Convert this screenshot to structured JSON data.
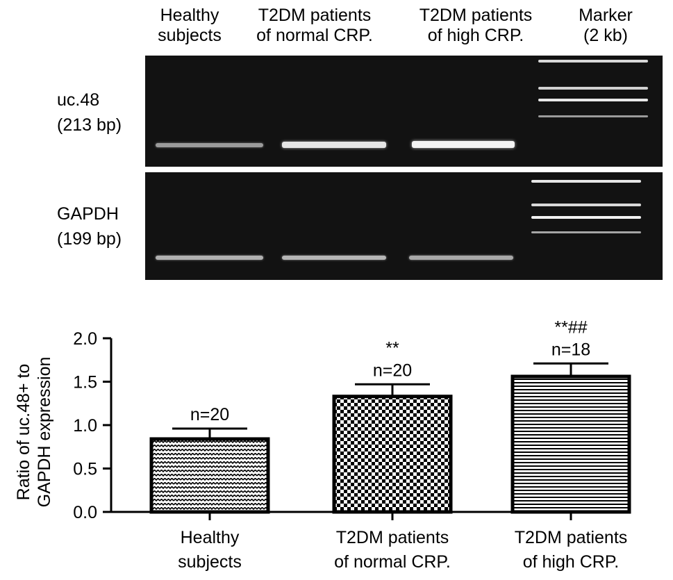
{
  "gel": {
    "lanes": [
      {
        "line1": "Healthy",
        "line2": "subjects"
      },
      {
        "line1": "T2DM patients",
        "line2": "of normal CRP."
      },
      {
        "line1": "T2DM patients",
        "line2": "of high CRP."
      },
      {
        "line1": "Marker",
        "line2": "(2 kb)"
      }
    ],
    "rows": [
      {
        "name": "uc.48",
        "size": "(213 bp)"
      },
      {
        "name": "GAPDH",
        "size": "(199 bp)"
      }
    ]
  },
  "chart_data": {
    "type": "bar",
    "categories": [
      [
        "Healthy",
        "subjects"
      ],
      [
        "T2DM patients",
        "of normal CRP."
      ],
      [
        "T2DM patients",
        "of high CRP."
      ]
    ],
    "values": [
      0.84,
      1.33,
      1.56
    ],
    "errors": [
      0.12,
      0.14,
      0.15
    ],
    "annotations": [
      {
        "n": "n=20",
        "sig": ""
      },
      {
        "n": "n=20",
        "sig": "**"
      },
      {
        "n": "n=18",
        "sig": "**##"
      }
    ],
    "ylabel": [
      "Ratio of uc.48+ to",
      "GAPDH expression"
    ],
    "ylim": [
      0,
      2.0
    ],
    "yticks": [
      "0.0",
      "0.5",
      "1.0",
      "1.5",
      "2.0"
    ],
    "yticks_values": [
      0,
      0.5,
      1.0,
      1.5,
      2.0
    ],
    "patterns": [
      "zigzag",
      "checker",
      "horizontal-lines"
    ],
    "bar_color": "#000000"
  }
}
